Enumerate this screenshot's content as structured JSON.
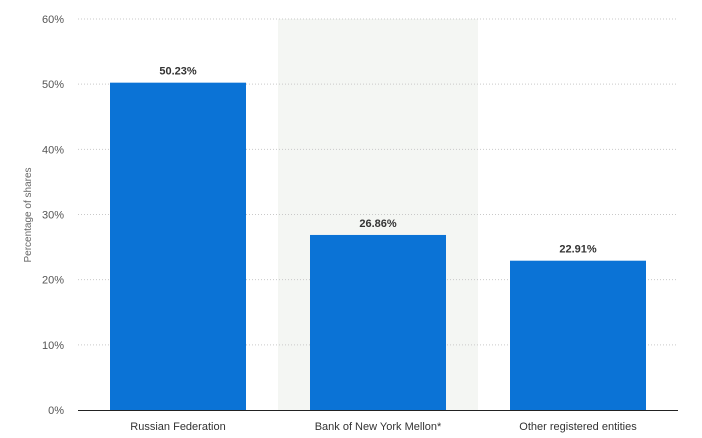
{
  "chart_data": {
    "type": "bar",
    "title": "",
    "xlabel": "",
    "ylabel": "Percentage of shares",
    "categories": [
      "Russian Federation",
      "Bank of New York Mellon*",
      "Other registered entities"
    ],
    "values": [
      50.23,
      26.86,
      22.91
    ],
    "data_labels": [
      "50.23%",
      "26.86%",
      "22.91%"
    ],
    "ylim": [
      0,
      60
    ],
    "y_ticks": [
      0,
      10,
      20,
      30,
      40,
      50,
      60
    ],
    "y_tick_labels": [
      "0%",
      "10%",
      "20%",
      "30%",
      "40%",
      "50%",
      "60%"
    ],
    "grid": true,
    "highlighted_category_index": 1,
    "colors": {
      "bar": "#0b73d6",
      "highlight_band": "#f4f6f3",
      "grid": "#c9c9c9",
      "axis": "#222222"
    }
  }
}
